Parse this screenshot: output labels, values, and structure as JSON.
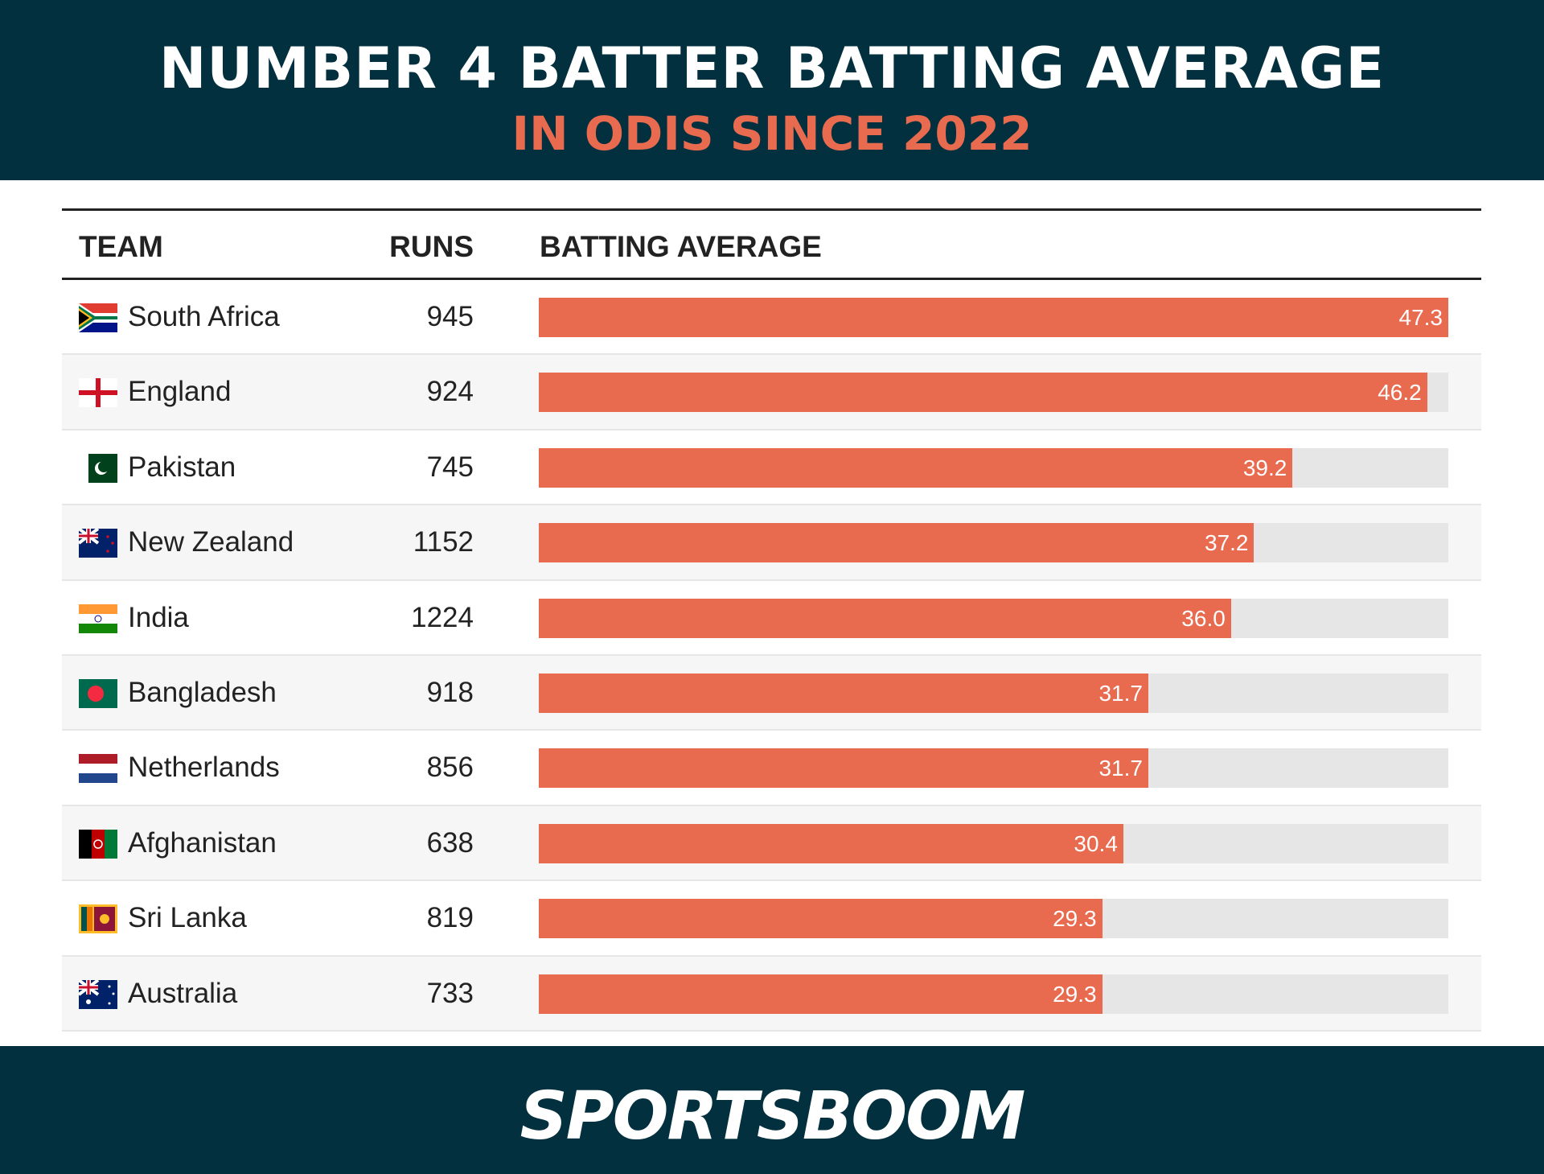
{
  "header": {
    "title": "NUMBER 4 BATTER BATTING AVERAGE",
    "subtitle": "IN ODIS SINCE 2022"
  },
  "footer": {
    "logo": "SPORTSBOOM"
  },
  "colors": {
    "background_dark": "#03303f",
    "accent": "#e96b4f",
    "track": "#e6e6e6"
  },
  "chart_data": {
    "type": "table",
    "title": "NUMBER 4 BATTER BATTING AVERAGE",
    "subtitle": "IN ODIS SINCE 2022",
    "columns": [
      "TEAM",
      "RUNS",
      "BATTING AVERAGE"
    ],
    "xlim": [
      0,
      47.3
    ],
    "rows": [
      {
        "team": "South Africa",
        "flag": "south-africa-flag",
        "runs": "945",
        "avg": 47.3,
        "label": "47.3"
      },
      {
        "team": "England",
        "flag": "england-flag",
        "runs": "924",
        "avg": 46.2,
        "label": "46.2"
      },
      {
        "team": "Pakistan",
        "flag": "pakistan-flag",
        "runs": "745",
        "avg": 39.2,
        "label": "39.2"
      },
      {
        "team": "New Zealand",
        "flag": "new-zealand-flag",
        "runs": "1152",
        "avg": 37.2,
        "label": "37.2"
      },
      {
        "team": "India",
        "flag": "india-flag",
        "runs": "1224",
        "avg": 36.0,
        "label": "36.0"
      },
      {
        "team": "Bangladesh",
        "flag": "bangladesh-flag",
        "runs": "918",
        "avg": 31.7,
        "label": "31.7"
      },
      {
        "team": "Netherlands",
        "flag": "netherlands-flag",
        "runs": "856",
        "avg": 31.7,
        "label": "31.7"
      },
      {
        "team": "Afghanistan",
        "flag": "afghanistan-flag",
        "runs": "638",
        "avg": 30.4,
        "label": "30.4"
      },
      {
        "team": "Sri Lanka",
        "flag": "sri-lanka-flag",
        "runs": "819",
        "avg": 29.3,
        "label": "29.3"
      },
      {
        "team": "Australia",
        "flag": "australia-flag",
        "runs": "733",
        "avg": 29.3,
        "label": "29.3"
      }
    ]
  }
}
